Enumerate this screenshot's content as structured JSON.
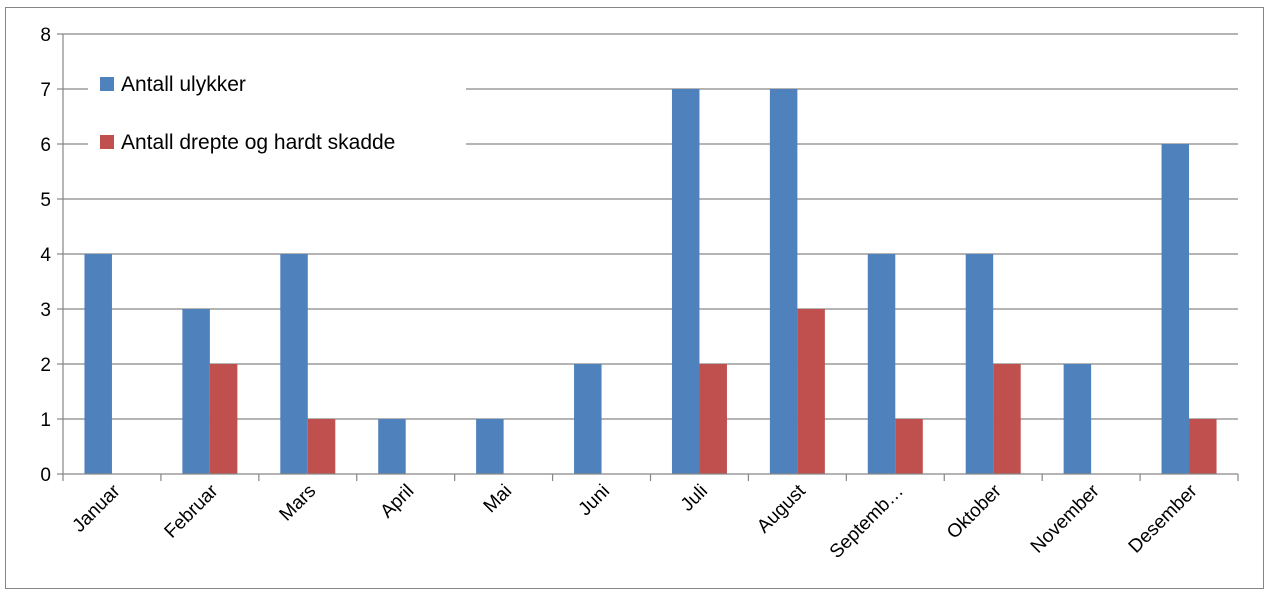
{
  "chart_data": {
    "type": "bar",
    "categories": [
      "Januar",
      "Februar",
      "Mars",
      "April",
      "Mai",
      "Juni",
      "Juli",
      "August",
      "Septemb…",
      "Oktober",
      "November",
      "Desember"
    ],
    "series": [
      {
        "name": "Antall ulykker",
        "color": "#4F81BD",
        "values": [
          4,
          3,
          4,
          1,
          1,
          2,
          7,
          7,
          4,
          4,
          2,
          6
        ]
      },
      {
        "name": "Antall drepte og hardt skadde",
        "color": "#C0504D",
        "values": [
          0,
          2,
          1,
          0,
          0,
          0,
          2,
          3,
          1,
          2,
          0,
          1
        ]
      }
    ],
    "ylim": [
      0,
      8
    ],
    "yticks": [
      0,
      1,
      2,
      3,
      4,
      5,
      6,
      7,
      8
    ],
    "grid": true,
    "legend_position": "top-left",
    "title": "",
    "xlabel": "",
    "ylabel": ""
  }
}
